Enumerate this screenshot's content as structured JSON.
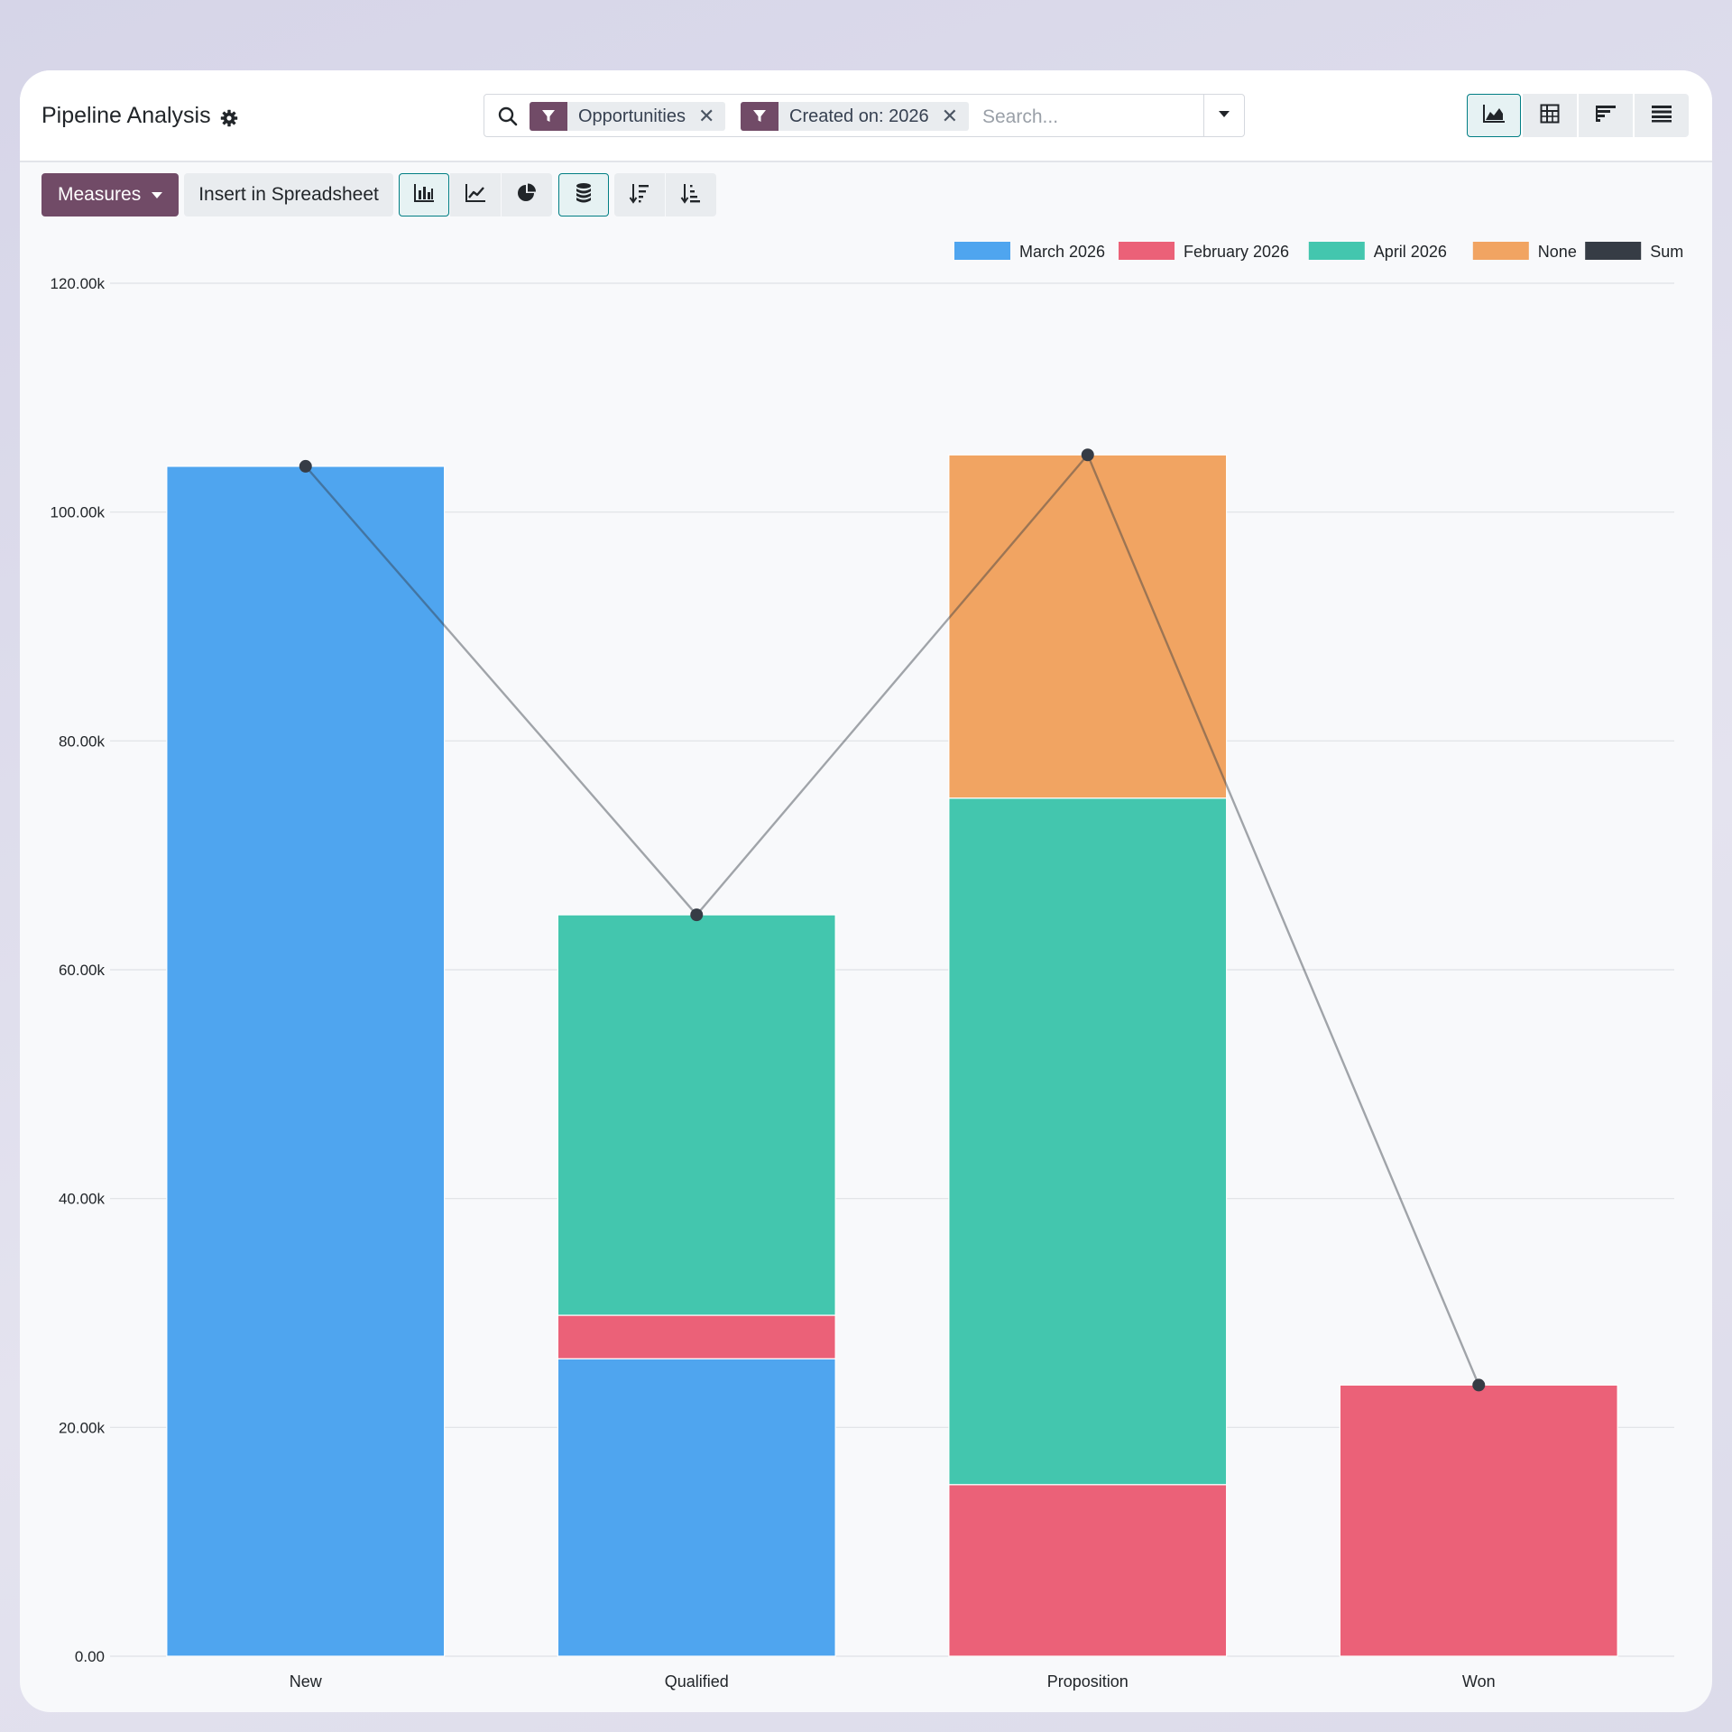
{
  "header": {
    "title": "Pipeline Analysis",
    "settings_icon": "gear-icon"
  },
  "search": {
    "facets": [
      {
        "label": "Opportunities",
        "icon": "filter-icon"
      },
      {
        "label": "Created on: 2026",
        "icon": "filter-icon"
      }
    ],
    "placeholder": "Search...",
    "value": ""
  },
  "view_switcher": [
    {
      "name": "graph",
      "icon": "area-chart-icon",
      "active": true
    },
    {
      "name": "pivot",
      "icon": "table-icon",
      "active": false
    },
    {
      "name": "cohort",
      "icon": "cohort-icon",
      "active": false
    },
    {
      "name": "list",
      "icon": "list-icon",
      "active": false
    }
  ],
  "toolbar": {
    "measures_label": "Measures",
    "insert_label": "Insert in Spreadsheet",
    "chart_types": [
      {
        "icon": "bar-chart-icon",
        "active": true
      },
      {
        "icon": "line-chart-icon",
        "active": false
      },
      {
        "icon": "pie-chart-icon",
        "active": false
      }
    ],
    "stacked_icon": "stack-icon",
    "sort_icons": [
      "sort-descending-icon",
      "sort-ascending-icon"
    ]
  },
  "colors": {
    "brand": "#714b67",
    "accent": "#017e84"
  },
  "chart_data": {
    "type": "bar",
    "stacked": true,
    "categories": [
      "New",
      "Qualified",
      "Proposition",
      "Won"
    ],
    "series": [
      {
        "name": "March 2026",
        "color": "#4fa5ef",
        "values": [
          104000,
          26000,
          0,
          0
        ]
      },
      {
        "name": "February 2026",
        "color": "#eb6178",
        "values": [
          0,
          3800,
          15000,
          23700
        ]
      },
      {
        "name": "April 2026",
        "color": "#43c6ae",
        "values": [
          0,
          35000,
          60000,
          0
        ]
      },
      {
        "name": "None",
        "color": "#f1a462",
        "values": [
          0,
          0,
          30000,
          0
        ]
      }
    ],
    "line_series": {
      "name": "Sum",
      "color": "#363c45",
      "values": [
        104000,
        64800,
        105000,
        23700
      ]
    },
    "ylim": [
      0,
      120000
    ],
    "yticks": [
      "0.00",
      "20.00k",
      "40.00k",
      "60.00k",
      "80.00k",
      "100.00k",
      "120.00k"
    ],
    "legend_position": "top-right",
    "grid": true
  }
}
